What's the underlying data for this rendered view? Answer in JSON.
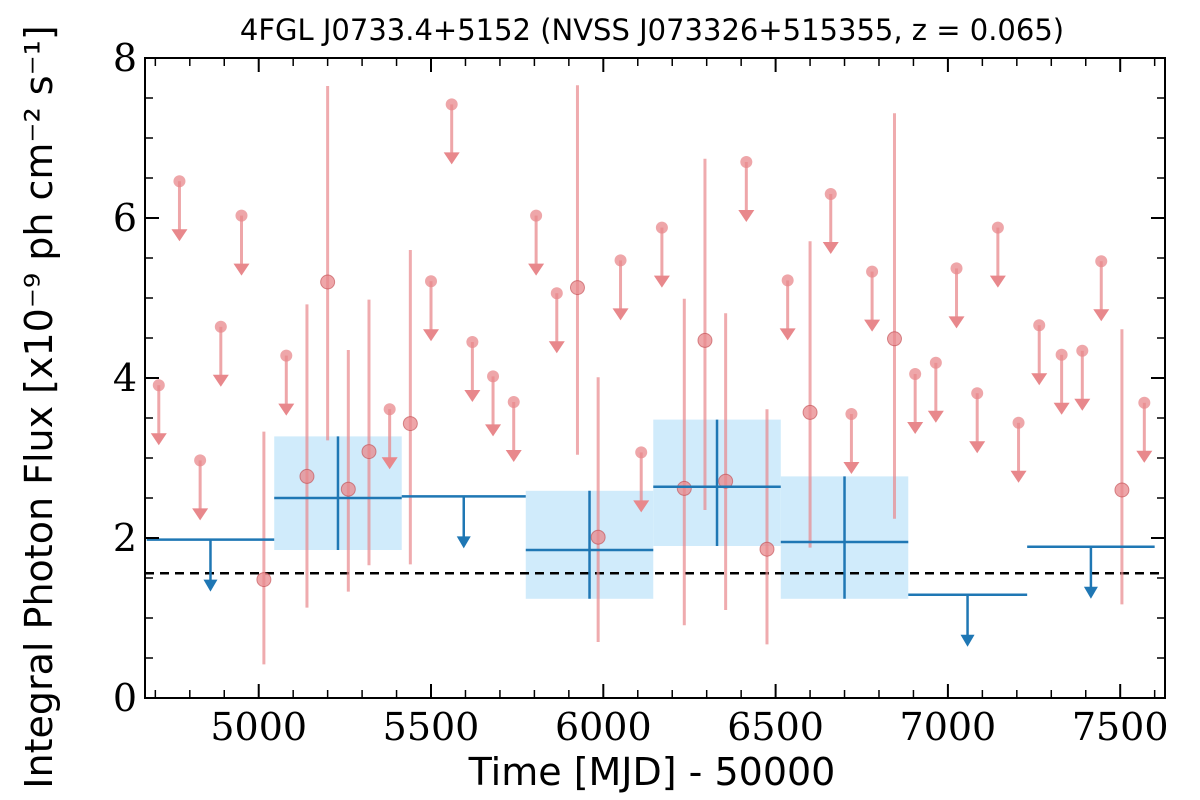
{
  "chart_data": {
    "type": "scatter",
    "title": "4FGL J0733.4+5152 (NVSS J073326+515355, z = 0.065)",
    "xlabel": "Time [MJD] - 50000",
    "ylabel": "Integral Photon Flux [x10⁻⁹ ph cm⁻² s⁻¹]",
    "xlim": [
      4670,
      7630
    ],
    "ylim": [
      0,
      8
    ],
    "x_ticks": [
      "5000",
      "5500",
      "6000",
      "6500",
      "7000",
      "7500"
    ],
    "y_ticks": [
      "0",
      "2",
      "4",
      "6",
      "8"
    ],
    "grid": false,
    "reference_line": {
      "y": 1.56,
      "style": "dashed",
      "color": "#000000"
    },
    "colors": {
      "short_bins": "#e8888c",
      "long_bins": "#1f77b4",
      "long_bins_band": "#cdeafb"
    },
    "short_bins": {
      "detections": [
        {
          "x": 5015,
          "y": 1.48,
          "ylo": 0.42,
          "yhi": 3.33
        },
        {
          "x": 5140,
          "y": 2.77,
          "ylo": 1.13,
          "yhi": 4.92
        },
        {
          "x": 5200,
          "y": 5.2,
          "ylo": 3.22,
          "yhi": 7.65
        },
        {
          "x": 5260,
          "y": 2.61,
          "ylo": 1.33,
          "yhi": 4.35
        },
        {
          "x": 5320,
          "y": 3.08,
          "ylo": 1.66,
          "yhi": 4.98
        },
        {
          "x": 5440,
          "y": 3.43,
          "ylo": 1.67,
          "yhi": 5.6
        },
        {
          "x": 5925,
          "y": 5.13,
          "ylo": 3.04,
          "yhi": 7.66
        },
        {
          "x": 5985,
          "y": 2.01,
          "ylo": 0.7,
          "yhi": 4.01
        },
        {
          "x": 6235,
          "y": 2.62,
          "ylo": 0.91,
          "yhi": 4.99
        },
        {
          "x": 6295,
          "y": 4.47,
          "ylo": 2.35,
          "yhi": 6.74
        },
        {
          "x": 6355,
          "y": 2.71,
          "ylo": 1.1,
          "yhi": 4.81
        },
        {
          "x": 6475,
          "y": 1.86,
          "ylo": 0.67,
          "yhi": 3.61
        },
        {
          "x": 6600,
          "y": 3.57,
          "ylo": 1.88,
          "yhi": 5.71
        },
        {
          "x": 6845,
          "y": 4.49,
          "ylo": 2.24,
          "yhi": 7.31
        },
        {
          "x": 7505,
          "y": 2.6,
          "ylo": 1.17,
          "yhi": 4.61
        }
      ],
      "upper_limits": [
        {
          "x": 4710,
          "y": 3.91
        },
        {
          "x": 4770,
          "y": 6.46
        },
        {
          "x": 4830,
          "y": 2.97
        },
        {
          "x": 4890,
          "y": 4.64
        },
        {
          "x": 4950,
          "y": 6.03
        },
        {
          "x": 5080,
          "y": 4.28
        },
        {
          "x": 5380,
          "y": 3.61
        },
        {
          "x": 5500,
          "y": 5.21
        },
        {
          "x": 5560,
          "y": 7.42
        },
        {
          "x": 5620,
          "y": 4.45
        },
        {
          "x": 5680,
          "y": 4.02
        },
        {
          "x": 5740,
          "y": 3.7
        },
        {
          "x": 5805,
          "y": 6.03
        },
        {
          "x": 5865,
          "y": 5.06
        },
        {
          "x": 6050,
          "y": 5.47
        },
        {
          "x": 6110,
          "y": 3.07
        },
        {
          "x": 6170,
          "y": 5.88
        },
        {
          "x": 6415,
          "y": 6.7
        },
        {
          "x": 6535,
          "y": 5.22
        },
        {
          "x": 6660,
          "y": 6.3
        },
        {
          "x": 6720,
          "y": 3.55
        },
        {
          "x": 6780,
          "y": 5.33
        },
        {
          "x": 6905,
          "y": 4.05
        },
        {
          "x": 6965,
          "y": 4.19
        },
        {
          "x": 7025,
          "y": 5.37
        },
        {
          "x": 7085,
          "y": 3.81
        },
        {
          "x": 7145,
          "y": 5.88
        },
        {
          "x": 7205,
          "y": 3.44
        },
        {
          "x": 7265,
          "y": 4.66
        },
        {
          "x": 7330,
          "y": 4.29
        },
        {
          "x": 7390,
          "y": 4.34
        },
        {
          "x": 7445,
          "y": 5.46
        },
        {
          "x": 7570,
          "y": 3.69
        }
      ]
    },
    "long_bins": {
      "detections": [
        {
          "x0": 5045,
          "x1": 5415,
          "xc": 5230,
          "y": 2.5,
          "ylo": 1.85,
          "yhi": 3.27
        },
        {
          "x0": 5775,
          "x1": 6145,
          "xc": 5960,
          "y": 1.85,
          "ylo": 1.24,
          "yhi": 2.59
        },
        {
          "x0": 6145,
          "x1": 6515,
          "xc": 6330,
          "y": 2.64,
          "ylo": 1.9,
          "yhi": 3.48
        },
        {
          "x0": 6515,
          "x1": 6885,
          "xc": 6700,
          "y": 1.95,
          "ylo": 1.24,
          "yhi": 2.77
        }
      ],
      "upper_limits": [
        {
          "x0": 4675,
          "x1": 5045,
          "xc": 4860,
          "y": 1.98
        },
        {
          "x0": 5415,
          "x1": 5775,
          "xc": 5595,
          "y": 2.52
        },
        {
          "x0": 6885,
          "x1": 7230,
          "xc": 7057,
          "y": 1.29
        },
        {
          "x0": 7230,
          "x1": 7600,
          "xc": 7415,
          "y": 1.89
        }
      ]
    }
  }
}
